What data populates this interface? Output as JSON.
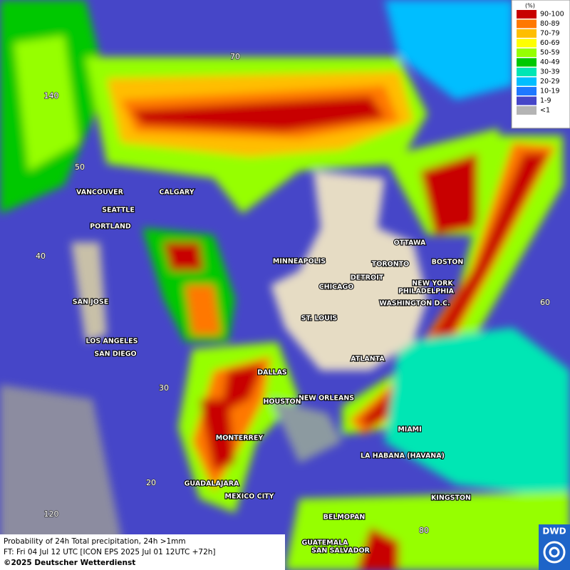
{
  "legend": {
    "unit": "(%)",
    "items": [
      {
        "label": "90-100",
        "color": "#c80000"
      },
      {
        "label": "80-89",
        "color": "#ff7800"
      },
      {
        "label": "70-79",
        "color": "#ffbe00"
      },
      {
        "label": "60-69",
        "color": "#ffff00"
      },
      {
        "label": "50-59",
        "color": "#96ff00"
      },
      {
        "label": "40-49",
        "color": "#00c800"
      },
      {
        "label": "30-39",
        "color": "#00e6b4"
      },
      {
        "label": "20-29",
        "color": "#00beff"
      },
      {
        "label": "10-19",
        "color": "#1e78ff"
      },
      {
        "label": "1-9",
        "color": "#4646c8"
      },
      {
        "label": "<1",
        "color": "#b4b4b4"
      }
    ]
  },
  "grid_labels": [
    "70",
    "140",
    "50",
    "40",
    "30",
    "20",
    "120",
    "80",
    "60"
  ],
  "cities": [
    "VANCOUVER",
    "CALGARY",
    "SEATTLE",
    "PORTLAND",
    "MINNEAPOLIS",
    "OTTAWA",
    "TORONTO",
    "BOSTON",
    "DETROIT",
    "CHICAGO",
    "NEW YORK",
    "PHILADELPHIA",
    "WASHINGTON D.C.",
    "SAN JOSE",
    "ST. LOUIS",
    "LOS ANGELES",
    "SAN DIEGO",
    "ATLANTA",
    "DALLAS",
    "NEW ORLEANS",
    "HOUSTON",
    "MIAMI",
    "MONTERREY",
    "LA HABANA (HAVANA)",
    "GUADALAJARA",
    "MEXICO CITY",
    "KINGSTON",
    "BELMOPAN",
    "GUATEMALA",
    "SAN SALVADOR"
  ],
  "caption": {
    "line1": "Probability of 24h Total precipitation, 24h >1mm",
    "line2": "FT: Fri 04 Jul 12 UTC [ICON EPS 2025 Jul 01 12UTC +72h]",
    "copyright": "©2025 Deutscher Wetterdienst"
  },
  "logo": "DWD"
}
